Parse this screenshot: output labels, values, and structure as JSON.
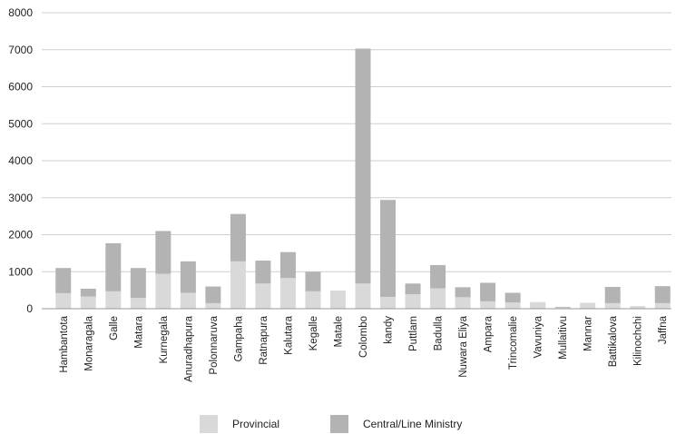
{
  "colors": {
    "provincial": "#d9d9d9",
    "central": "#b3b3b3",
    "grid": "#cfcfcf"
  },
  "chart_data": {
    "type": "bar",
    "stacked": true,
    "title": "",
    "xlabel": "",
    "ylabel": "",
    "ylim": [
      0,
      8000
    ],
    "yticks": [
      0,
      1000,
      2000,
      3000,
      4000,
      5000,
      6000,
      7000,
      8000
    ],
    "grid": true,
    "legend_position": "bottom",
    "categories": [
      "Hambantota",
      "Monaragala",
      "Galle",
      "Matara",
      "Kurnegala",
      "Anuradhapura",
      "Polonnaruva",
      "Gampaha",
      "Ratnapura",
      "Kalutara",
      "Kegalle",
      "Matale",
      "Colombo",
      "kandy",
      "Puttlam",
      "Badulla",
      "Nuwara Eliya",
      "Ampara",
      "Trincomalie",
      "Vavuniya",
      "Mullaitivu",
      "Mannar",
      "Battikalova",
      "Kilinochchi",
      "Jaffna"
    ],
    "series": [
      {
        "name": "Provincial",
        "values": [
          420,
          330,
          470,
          290,
          940,
          430,
          150,
          1280,
          680,
          830,
          470,
          490,
          680,
          320,
          390,
          550,
          310,
          200,
          170,
          180,
          30,
          160,
          150,
          70,
          150
        ]
      },
      {
        "name": "Central/Line Ministry",
        "values": [
          680,
          210,
          1300,
          810,
          1160,
          850,
          450,
          1280,
          620,
          700,
          530,
          0,
          6350,
          2620,
          290,
          630,
          270,
          500,
          260,
          0,
          20,
          0,
          440,
          0,
          460
        ]
      }
    ]
  }
}
